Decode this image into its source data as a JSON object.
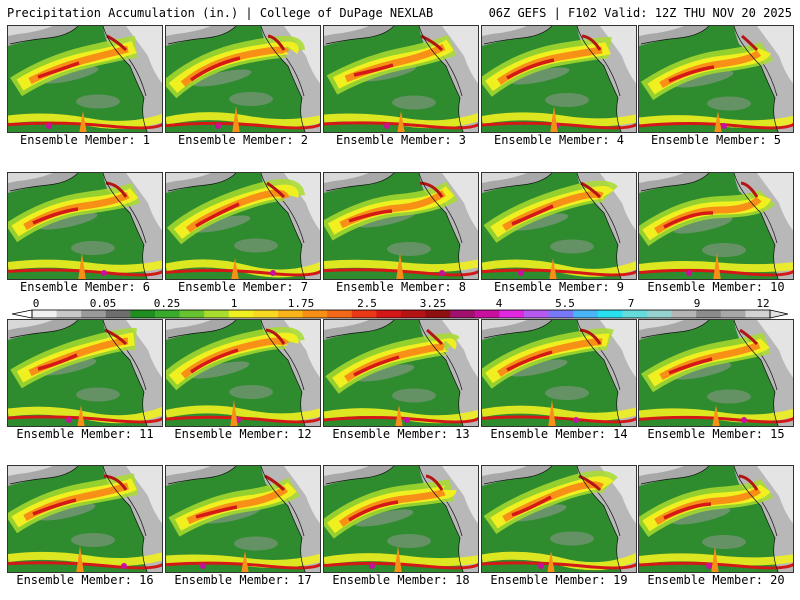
{
  "header": {
    "title": "Precipitation Accumulation (in.) | College of DuPage NEXLAB",
    "run_info": "06Z GEFS | F102 Valid: 12Z THU NOV 20 2025"
  },
  "panels": [
    {
      "label": "Ensemble Member: 1"
    },
    {
      "label": "Ensemble Member: 2"
    },
    {
      "label": "Ensemble Member: 3"
    },
    {
      "label": "Ensemble Member: 4"
    },
    {
      "label": "Ensemble Member: 5"
    },
    {
      "label": "Ensemble Member: 6"
    },
    {
      "label": "Ensemble Member: 7"
    },
    {
      "label": "Ensemble Member: 8"
    },
    {
      "label": "Ensemble Member: 9"
    },
    {
      "label": "Ensemble Member: 10"
    },
    {
      "label": "Ensemble Member: 11"
    },
    {
      "label": "Ensemble Member: 12"
    },
    {
      "label": "Ensemble Member: 13"
    },
    {
      "label": "Ensemble Member: 14"
    },
    {
      "label": "Ensemble Member: 15"
    },
    {
      "label": "Ensemble Member: 16"
    },
    {
      "label": "Ensemble Member: 17"
    },
    {
      "label": "Ensemble Member: 18"
    },
    {
      "label": "Ensemble Member: 19"
    },
    {
      "label": "Ensemble Member: 20"
    }
  ],
  "legend": {
    "tick_labels": [
      "0",
      "0.05",
      "0.25",
      "1",
      "1.75",
      "2.5",
      "3.25",
      "4",
      "5.5",
      "7",
      "9",
      "12"
    ],
    "colors": [
      "#f0f0f0",
      "#c8c8c8",
      "#9a9a9a",
      "#6e6e6e",
      "#1e8f1e",
      "#3aaa2a",
      "#66c22e",
      "#a8dc2e",
      "#f0f020",
      "#f8d820",
      "#f8b418",
      "#f89018",
      "#f06818",
      "#e83818",
      "#d41818",
      "#b41414",
      "#8e1010",
      "#a0106e",
      "#c810a0",
      "#e028e0",
      "#b45af0",
      "#7878f8",
      "#4ab4f8",
      "#28e0f0",
      "#64dcdc",
      "#96d2d2",
      "#b4b4b4",
      "#8c8c8c",
      "#a8a8a8",
      "#d2d2d2"
    ]
  }
}
